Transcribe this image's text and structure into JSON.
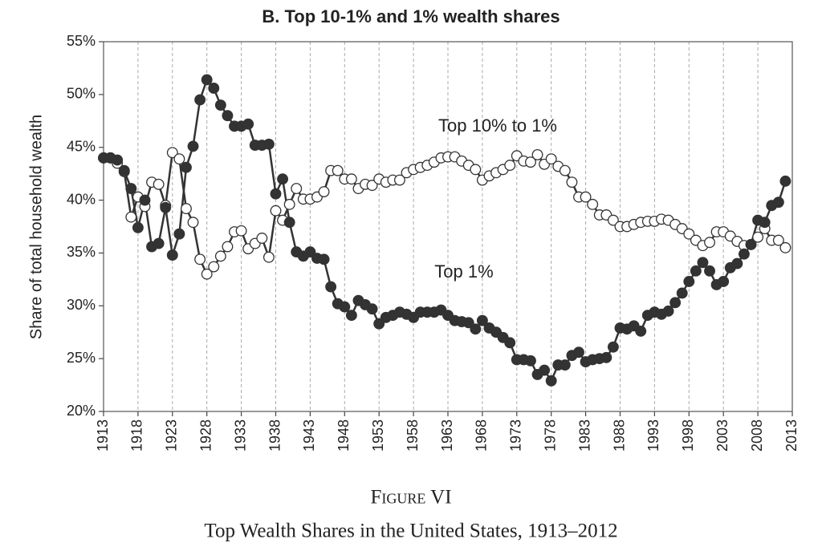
{
  "chart_data": {
    "type": "line",
    "title": "B. Top 10-1% and 1% wealth shares",
    "y_label": "Share of total household wealth",
    "caption_label": "Figure VI",
    "caption": "Top Wealth Shares in the United States, 1913–2012",
    "annotations": [
      "Top 10% to 1%",
      "Top 1%"
    ],
    "x": [
      1913,
      1914,
      1915,
      1916,
      1917,
      1918,
      1919,
      1920,
      1921,
      1922,
      1923,
      1924,
      1925,
      1926,
      1927,
      1928,
      1929,
      1930,
      1931,
      1932,
      1933,
      1934,
      1935,
      1936,
      1937,
      1938,
      1939,
      1940,
      1941,
      1942,
      1943,
      1944,
      1945,
      1946,
      1947,
      1948,
      1949,
      1950,
      1951,
      1952,
      1953,
      1954,
      1955,
      1956,
      1957,
      1958,
      1959,
      1960,
      1961,
      1962,
      1963,
      1964,
      1965,
      1966,
      1967,
      1968,
      1969,
      1970,
      1971,
      1972,
      1973,
      1974,
      1975,
      1976,
      1977,
      1978,
      1979,
      1980,
      1981,
      1982,
      1983,
      1984,
      1985,
      1986,
      1987,
      1988,
      1989,
      1990,
      1991,
      1992,
      1993,
      1994,
      1995,
      1996,
      1997,
      1998,
      1999,
      2000,
      2001,
      2002,
      2003,
      2004,
      2005,
      2006,
      2007,
      2008,
      2009,
      2010,
      2011,
      2012
    ],
    "series": [
      {
        "name": "Top 1%",
        "color": "#333333",
        "marker_fill": "#333333",
        "values": [
          44.0,
          44.0,
          43.8,
          42.8,
          41.1,
          37.4,
          40.0,
          35.6,
          35.9,
          39.3,
          34.8,
          36.8,
          43.1,
          45.1,
          49.5,
          51.4,
          50.6,
          49.0,
          48.0,
          47.0,
          47.0,
          47.2,
          45.2,
          45.2,
          45.3,
          40.6,
          42.0,
          37.9,
          35.1,
          34.7,
          35.1,
          34.5,
          34.4,
          31.8,
          30.2,
          29.9,
          29.1,
          30.5,
          30.1,
          29.7,
          28.3,
          28.9,
          29.1,
          29.4,
          29.2,
          28.9,
          29.4,
          29.4,
          29.4,
          29.6,
          29.1,
          28.6,
          28.5,
          28.4,
          27.8,
          28.6,
          27.9,
          27.5,
          27.0,
          26.5,
          24.9,
          24.9,
          24.8,
          23.5,
          23.9,
          22.9,
          24.4,
          24.4,
          25.3,
          25.6,
          24.7,
          24.9,
          25.0,
          25.1,
          26.1,
          27.9,
          27.8,
          28.1,
          27.6,
          29.1,
          29.4,
          29.2,
          29.5,
          30.3,
          31.2,
          32.3,
          33.3,
          34.1,
          33.3,
          32.0,
          32.3,
          33.6,
          34.0,
          34.9,
          35.8,
          38.1,
          37.9,
          39.5,
          39.8,
          41.8
        ]
      },
      {
        "name": "Top 10% to 1%",
        "color": "#333333",
        "marker_fill": "#ffffff",
        "values": [
          44.0,
          44.0,
          43.5,
          42.7,
          38.4,
          40.3,
          39.4,
          41.7,
          41.5,
          39.5,
          44.5,
          43.9,
          39.2,
          37.9,
          34.4,
          33.0,
          33.7,
          34.7,
          35.6,
          37.0,
          37.1,
          35.4,
          35.9,
          36.4,
          34.6,
          39.0,
          38.1,
          39.6,
          41.1,
          40.1,
          40.1,
          40.3,
          40.8,
          42.8,
          42.8,
          42.0,
          42.0,
          41.1,
          41.5,
          41.4,
          42.0,
          41.7,
          41.9,
          41.9,
          42.6,
          42.9,
          43.1,
          43.3,
          43.6,
          44.0,
          44.1,
          44.1,
          43.7,
          43.3,
          42.9,
          41.9,
          42.3,
          42.6,
          42.9,
          43.3,
          44.2,
          43.7,
          43.6,
          44.3,
          43.4,
          43.9,
          43.2,
          42.8,
          41.7,
          40.3,
          40.3,
          39.6,
          38.6,
          38.6,
          38.1,
          37.5,
          37.5,
          37.7,
          37.9,
          38.0,
          38.0,
          38.2,
          38.1,
          37.7,
          37.3,
          36.8,
          36.2,
          35.7,
          36.0,
          37.0,
          37.0,
          36.6,
          36.1,
          35.7,
          35.8,
          36.5,
          37.3,
          36.2,
          36.2,
          35.5
        ]
      }
    ],
    "xlim": [
      1913,
      2013
    ],
    "xticks": [
      1913,
      1918,
      1923,
      1928,
      1933,
      1938,
      1943,
      1948,
      1953,
      1958,
      1963,
      1968,
      1973,
      1978,
      1983,
      1988,
      1993,
      1998,
      2003,
      2008,
      2013
    ],
    "ylim": [
      20,
      55
    ],
    "yticks": [
      {
        "value": 20,
        "label": "20%"
      },
      {
        "value": 25,
        "label": "25%"
      },
      {
        "value": 30,
        "label": "30%"
      },
      {
        "value": 35,
        "label": "35%"
      },
      {
        "value": 40,
        "label": "40%"
      },
      {
        "value": 45,
        "label": "45%"
      },
      {
        "value": 50,
        "label": "50%"
      },
      {
        "value": 55,
        "label": "55%"
      }
    ],
    "grid": "x"
  }
}
